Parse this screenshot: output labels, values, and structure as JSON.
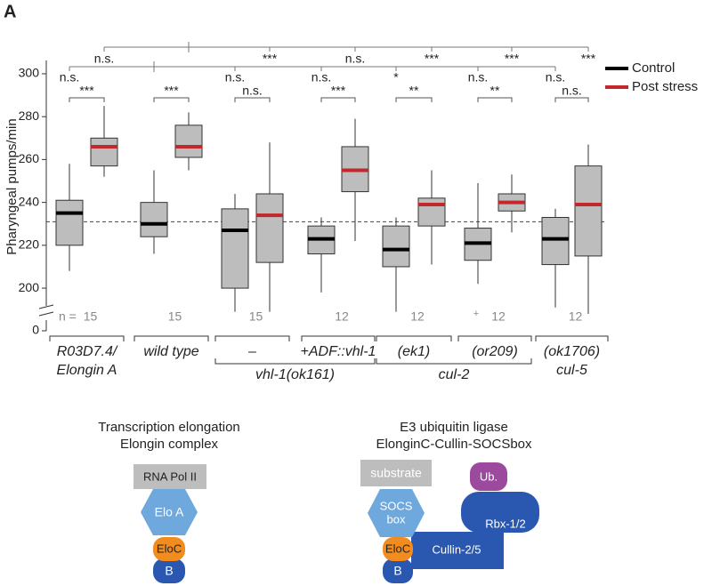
{
  "panel_label": "A",
  "chart_data": {
    "type": "box",
    "y_label": "Pharyngeal pumps/min",
    "ylim": [
      188,
      306
    ],
    "yticks": [
      0,
      200,
      220,
      240,
      260,
      280,
      300
    ],
    "axis_break": true,
    "reference_line": 231,
    "box_color": "#bdbdbd",
    "legend": "top-right",
    "categories": [
      [
        "R03D7.4/",
        "Elongin A"
      ],
      [
        "wild type"
      ],
      [
        "–"
      ],
      [
        "+ADF::vhl-1"
      ],
      [
        "(ek1)"
      ],
      [
        "(or209)"
      ],
      [
        "(ok1706)",
        "cul-5"
      ]
    ],
    "category_groups": [
      {
        "label": "vhl-1(ok161)",
        "categories": [
          2,
          3
        ]
      },
      {
        "label": "cul-2",
        "categories": [
          4,
          5
        ]
      }
    ],
    "n_label": "n =",
    "n": [
      15,
      15,
      15,
      12,
      12,
      12,
      12
    ],
    "series": [
      {
        "name": "Control",
        "color": "#000000",
        "boxes": [
          {
            "low": 208,
            "q1": 220,
            "median": 235,
            "q3": 241,
            "high": 258
          },
          {
            "low": 216,
            "q1": 224,
            "median": 230,
            "q3": 240,
            "high": 255
          },
          {
            "low": 189,
            "q1": 200,
            "median": 227,
            "q3": 237,
            "high": 244
          },
          {
            "low": 198,
            "q1": 216,
            "median": 223,
            "q3": 229,
            "high": 233
          },
          {
            "low": 189,
            "q1": 210,
            "median": 218,
            "q3": 229,
            "high": 233
          },
          {
            "low": 202,
            "q1": 213,
            "median": 221,
            "q3": 228,
            "high": 249,
            "outliers": [
              188
            ]
          },
          {
            "low": 191,
            "q1": 211,
            "median": 223,
            "q3": 233,
            "high": 237
          }
        ]
      },
      {
        "name": "Post stress",
        "color": "#c1272d",
        "boxes": [
          {
            "low": 252,
            "q1": 257,
            "median": 266,
            "q3": 270,
            "high": 285
          },
          {
            "low": 255,
            "q1": 261,
            "median": 266,
            "q3": 276,
            "high": 282
          },
          {
            "low": 189,
            "q1": 212,
            "median": 234,
            "q3": 244,
            "high": 268
          },
          {
            "low": 222,
            "q1": 245,
            "median": 255,
            "q3": 266,
            "high": 279
          },
          {
            "low": 211,
            "q1": 229,
            "median": 239,
            "q3": 242,
            "high": 255
          },
          {
            "low": 226,
            "q1": 236,
            "median": 240,
            "q3": 244,
            "high": 253
          },
          {
            "low": 188,
            "q1": 215,
            "median": 239,
            "q3": 257,
            "high": 267
          }
        ]
      }
    ],
    "within_group_significance": [
      "***",
      "***",
      "n.s.",
      "***",
      "**",
      "**",
      "n.s."
    ],
    "post_stress_vs_wild_type": [
      "n.s.",
      null,
      "***",
      "n.s.",
      "***",
      "***",
      "***"
    ],
    "control_vs_wild_type": [
      "n.s.",
      null,
      "n.s.",
      "n.s.",
      "*",
      "n.s.",
      "n.s."
    ]
  },
  "diagram": {
    "left": {
      "title": [
        "Transcription elongation",
        "Elongin complex"
      ],
      "rna_pol": "RNA Pol II",
      "elo_a": "Elo A",
      "eloc": "EloC",
      "b": "B"
    },
    "right": {
      "title": [
        "E3 ubiquitin ligase",
        "ElonginC-Cullin-SOCSbox"
      ],
      "substrate": "substrate",
      "socs_box": [
        "SOCS",
        "box"
      ],
      "ub": "Ub.",
      "rbx": "Rbx-1/2",
      "cullin": "Cullin-2/5",
      "eloc": "EloC",
      "b": "B"
    }
  }
}
